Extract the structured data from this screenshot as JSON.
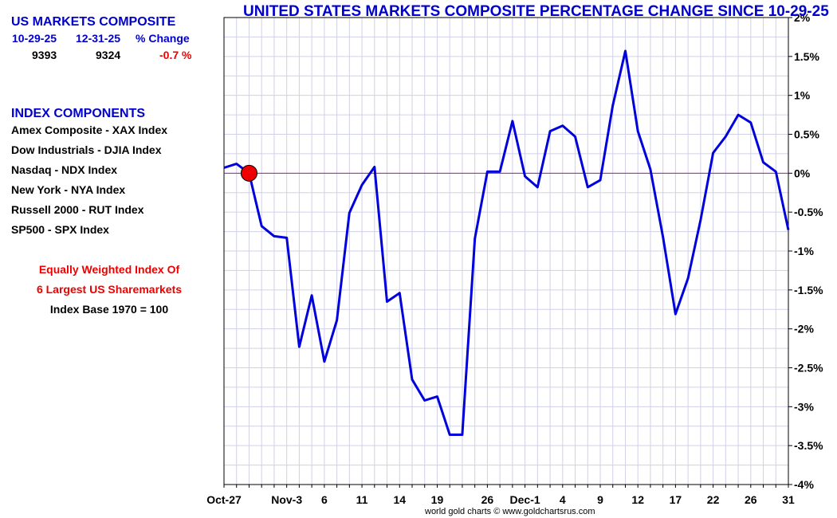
{
  "sidebar": {
    "heading": "US MARKETS COMPOSITE",
    "headers": [
      "10-29-25",
      "12-31-25",
      "% Change"
    ],
    "values": [
      "9393",
      "9324",
      "-0.7 %"
    ],
    "components_heading": "INDEX COMPONENTS",
    "components": [
      "Amex Composite - XAX Index",
      "Dow Industrials - DJIA Index",
      "Nasdaq - NDX Index",
      "New York - NYA Index",
      "Russell 2000 - RUT Index",
      "SP500 - SPX Index"
    ],
    "note_line1": "Equally Weighted Index Of",
    "note_line2": "6 Largest US Sharemarkets",
    "note_line3": "Index Base 1970 = 100"
  },
  "footer": "world gold charts © www.goldchartsrus.com",
  "colors": {
    "line": "#0000dd",
    "zero_line": "#cc00cc",
    "marker": "#ee0000",
    "title": "#0000cc",
    "grid": "#d0d0e8"
  },
  "chart_data": {
    "type": "line",
    "title": "UNITED STATES MARKETS COMPOSITE PERCENTAGE CHANGE SINCE 10-29-25",
    "ylim": [
      -4,
      2
    ],
    "yticks": [
      2,
      1.5,
      1,
      0.5,
      0,
      -0.5,
      -1,
      -1.5,
      -2,
      -2.5,
      -3,
      -3.5,
      -4
    ],
    "ytick_labels": [
      "2%",
      "1.5%",
      "1%",
      "0.5%",
      "0%",
      "-0.5%",
      "-1%",
      "-1.5%",
      "-2%",
      "-2.5%",
      "-3%",
      "-3.5%",
      "-4%"
    ],
    "x_tick_labels": [
      {
        "label": "Oct-27",
        "index": 0
      },
      {
        "label": "Nov-3",
        "index": 5
      },
      {
        "label": "6",
        "index": 8
      },
      {
        "label": "11",
        "index": 11
      },
      {
        "label": "14",
        "index": 14
      },
      {
        "label": "19",
        "index": 17
      },
      {
        "label": "26",
        "index": 21
      },
      {
        "label": "Dec-1",
        "index": 24
      },
      {
        "label": "4",
        "index": 27
      },
      {
        "label": "9",
        "index": 30
      },
      {
        "label": "12",
        "index": 33
      },
      {
        "label": "17",
        "index": 36
      },
      {
        "label": "22",
        "index": 39
      },
      {
        "label": "26",
        "index": 42
      },
      {
        "label": "31",
        "index": 45
      }
    ],
    "grid": true,
    "marker_index": 2,
    "series": [
      {
        "values": [
          0.07,
          0.12,
          0.0,
          -0.68,
          -0.81,
          -0.83,
          -2.23,
          -1.57,
          -2.42,
          -1.89,
          -0.51,
          -0.15,
          0.08,
          -1.65,
          -1.54,
          -2.65,
          -2.92,
          -2.87,
          -3.36,
          -3.36,
          -0.84,
          0.02,
          0.02,
          0.67,
          -0.04,
          -0.18,
          0.54,
          0.61,
          0.47,
          -0.18,
          -0.09,
          0.87,
          1.57,
          0.54,
          0.05,
          -0.82,
          -1.81,
          -1.35,
          -0.6,
          0.26,
          0.47,
          0.75,
          0.65,
          0.14,
          0.02,
          -0.73
        ]
      }
    ]
  }
}
